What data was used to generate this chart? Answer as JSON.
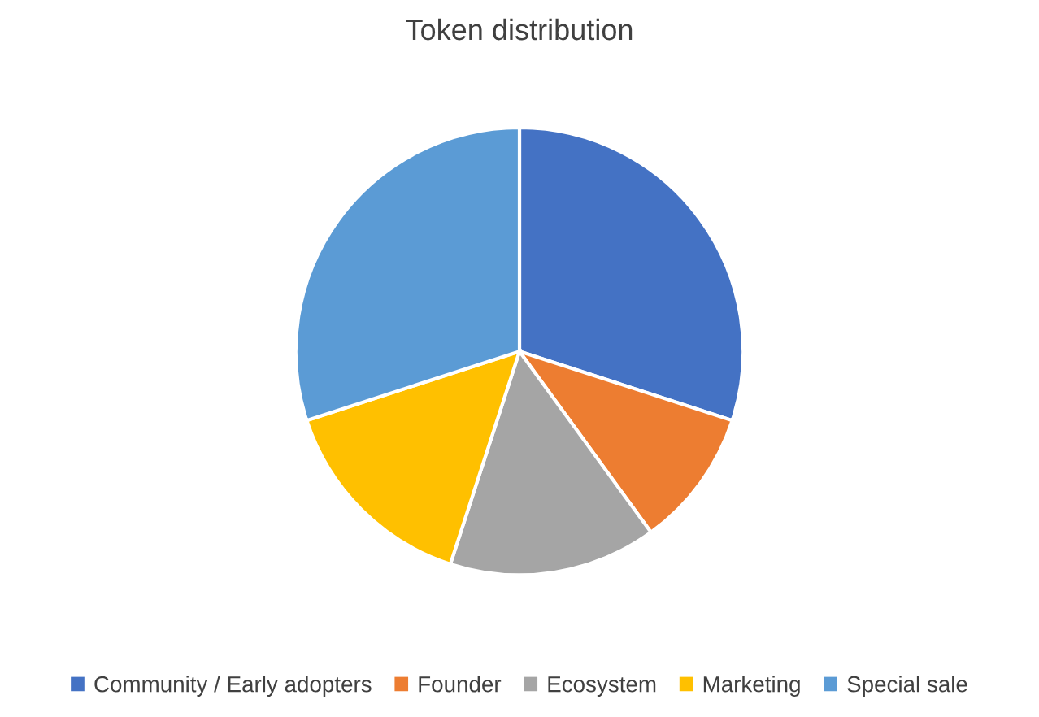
{
  "chart_data": {
    "type": "pie",
    "title": "Token distribution",
    "categories": [
      "Community / Early adopters",
      "Founder",
      "Ecosystem",
      "Marketing",
      "Special sale"
    ],
    "values": [
      30,
      10,
      15,
      15,
      30
    ],
    "colors": [
      "#4472c4",
      "#ed7d31",
      "#a5a5a5",
      "#ffc000",
      "#5b9bd5"
    ],
    "legend": "bottom"
  }
}
